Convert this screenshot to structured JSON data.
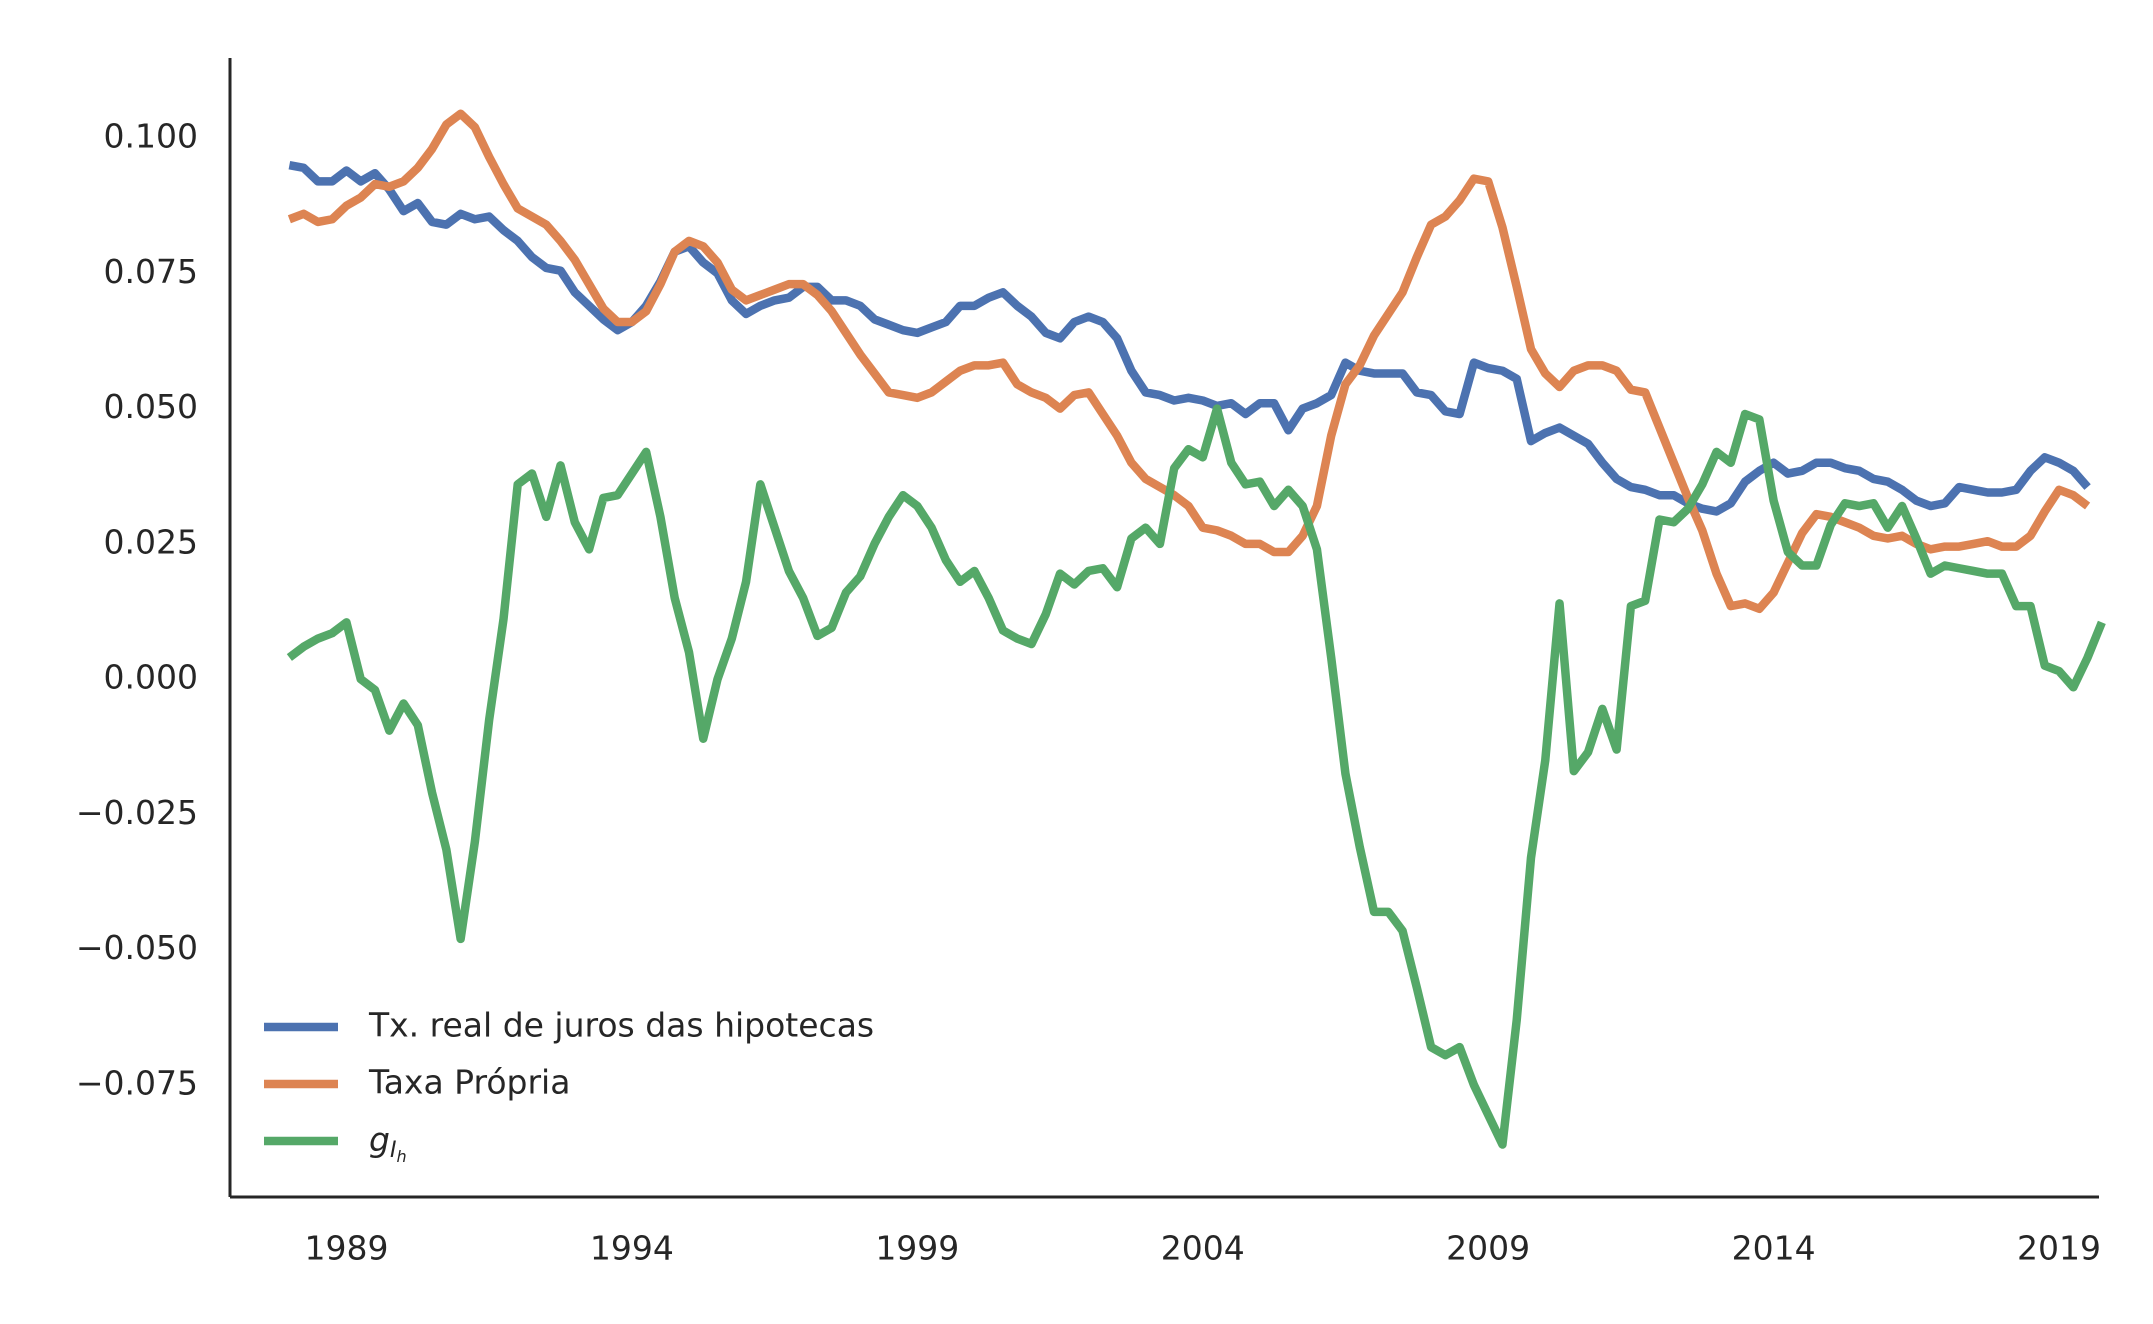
{
  "chart_data": {
    "type": "line",
    "x": [
      1988.0,
      1988.25,
      1988.5,
      1988.75,
      1989.0,
      1989.25,
      1989.5,
      1989.75,
      1990.0,
      1990.25,
      1990.5,
      1990.75,
      1991.0,
      1991.25,
      1991.5,
      1991.75,
      1992.0,
      1992.25,
      1992.5,
      1992.75,
      1993.0,
      1993.25,
      1993.5,
      1993.75,
      1994.0,
      1994.25,
      1994.5,
      1994.75,
      1995.0,
      1995.25,
      1995.5,
      1995.75,
      1996.0,
      1996.25,
      1996.5,
      1996.75,
      1997.0,
      1997.25,
      1997.5,
      1997.75,
      1998.0,
      1998.25,
      1998.5,
      1998.75,
      1999.0,
      1999.25,
      1999.5,
      1999.75,
      2000.0,
      2000.25,
      2000.5,
      2000.75,
      2001.0,
      2001.25,
      2001.5,
      2001.75,
      2002.0,
      2002.25,
      2002.5,
      2002.75,
      2003.0,
      2003.25,
      2003.5,
      2003.75,
      2004.0,
      2004.25,
      2004.5,
      2004.75,
      2005.0,
      2005.25,
      2005.5,
      2005.75,
      2006.0,
      2006.25,
      2006.5,
      2006.75,
      2007.0,
      2007.25,
      2007.5,
      2007.75,
      2008.0,
      2008.25,
      2008.5,
      2008.75,
      2009.0,
      2009.25,
      2009.5,
      2009.75,
      2010.0,
      2010.25,
      2010.5,
      2010.75,
      2011.0,
      2011.25,
      2011.5,
      2011.75,
      2012.0,
      2012.25,
      2012.5,
      2012.75,
      2013.0,
      2013.25,
      2013.5,
      2013.75,
      2014.0,
      2014.25,
      2014.5,
      2014.75,
      2015.0,
      2015.25,
      2015.5,
      2015.75,
      2016.0,
      2016.25,
      2016.5,
      2016.75,
      2017.0,
      2017.25,
      2017.5,
      2017.75,
      2018.0,
      2018.25,
      2018.5,
      2018.75,
      2019.0,
      2019.25,
      2019.5,
      2019.75
    ],
    "series": [
      {
        "name": "Tx. real de juros das hipotecas",
        "color": "#4c72b0",
        "values": [
          0.095,
          0.0945,
          0.092,
          0.092,
          0.094,
          0.092,
          0.0935,
          0.0905,
          0.0865,
          0.088,
          0.0845,
          0.084,
          0.086,
          0.085,
          0.0855,
          0.083,
          0.081,
          0.078,
          0.076,
          0.0755,
          0.0715,
          0.069,
          0.0665,
          0.0645,
          0.066,
          0.069,
          0.0735,
          0.079,
          0.08,
          0.077,
          0.075,
          0.07,
          0.0675,
          0.069,
          0.07,
          0.0705,
          0.0725,
          0.0725,
          0.07,
          0.07,
          0.069,
          0.0665,
          0.0655,
          0.0645,
          0.064,
          0.065,
          0.066,
          0.069,
          0.069,
          0.0705,
          0.0715,
          0.069,
          0.067,
          0.064,
          0.063,
          0.066,
          0.067,
          0.066,
          0.063,
          0.057,
          0.053,
          0.0525,
          0.0515,
          0.052,
          0.0515,
          0.0505,
          0.051,
          0.049,
          0.051,
          0.051,
          0.046,
          0.05,
          0.051,
          0.0525,
          0.0585,
          0.057,
          0.0565,
          0.0565,
          0.0565,
          0.053,
          0.0525,
          0.0495,
          0.049,
          0.0585,
          0.0575,
          0.057,
          0.0555,
          0.044,
          0.0455,
          0.0465,
          0.045,
          0.0435,
          0.04,
          0.037,
          0.0355,
          0.035,
          0.034,
          0.034,
          0.0325,
          0.0315,
          0.031,
          0.0325,
          0.0365,
          0.0385,
          0.04,
          0.038,
          0.0385,
          0.04,
          0.04,
          0.039,
          0.0385,
          0.037,
          0.0365,
          0.035,
          0.033,
          0.032,
          0.0325,
          0.0355,
          0.035,
          0.0345,
          0.0345,
          0.035,
          0.0385,
          0.041,
          0.04,
          0.0385,
          0.0355,
          null
        ]
      },
      {
        "name": "Taxa Própria",
        "color": "#dd8452",
        "values": [
          0.085,
          0.086,
          0.0845,
          0.085,
          0.0875,
          0.089,
          0.0915,
          0.091,
          0.092,
          0.0945,
          0.098,
          0.1025,
          0.1045,
          0.102,
          0.0965,
          0.0915,
          0.087,
          0.0855,
          0.084,
          0.081,
          0.0775,
          0.073,
          0.0685,
          0.066,
          0.066,
          0.068,
          0.073,
          0.079,
          0.081,
          0.08,
          0.077,
          0.072,
          0.07,
          0.071,
          0.072,
          0.073,
          0.073,
          0.071,
          0.068,
          0.064,
          0.06,
          0.0565,
          0.053,
          0.0525,
          0.052,
          0.053,
          0.055,
          0.057,
          0.058,
          0.058,
          0.0585,
          0.0545,
          0.053,
          0.052,
          0.05,
          0.0525,
          0.053,
          0.049,
          0.045,
          0.04,
          0.037,
          0.0355,
          0.034,
          0.032,
          0.028,
          0.0275,
          0.0265,
          0.025,
          0.025,
          0.0235,
          0.0235,
          0.0265,
          0.032,
          0.045,
          0.0545,
          0.058,
          0.0635,
          0.0675,
          0.0715,
          0.078,
          0.084,
          0.0855,
          0.0885,
          0.0925,
          0.092,
          0.0835,
          0.0725,
          0.061,
          0.0565,
          0.054,
          0.057,
          0.058,
          0.058,
          0.057,
          0.0535,
          0.053,
          0.0465,
          0.04,
          0.0335,
          0.0275,
          0.0195,
          0.0135,
          0.014,
          0.013,
          0.016,
          0.0215,
          0.027,
          0.0305,
          0.03,
          0.029,
          0.028,
          0.0265,
          0.026,
          0.0265,
          0.025,
          0.024,
          0.0245,
          0.0245,
          0.025,
          0.0255,
          0.0245,
          0.0245,
          0.0265,
          0.031,
          0.035,
          0.034,
          0.032,
          null
        ]
      },
      {
        "name": "gIh",
        "color": "#55a868",
        "values": [
          0.004,
          0.006,
          0.0075,
          0.0085,
          0.0105,
          0.0,
          -0.002,
          -0.0095,
          -0.0045,
          -0.0085,
          -0.021,
          -0.0315,
          -0.048,
          -0.03,
          -0.0075,
          0.011,
          0.036,
          0.038,
          0.03,
          0.0395,
          0.029,
          0.024,
          0.0335,
          0.034,
          0.038,
          0.042,
          0.03,
          0.015,
          0.005,
          -0.011,
          0.0,
          0.0075,
          0.018,
          0.036,
          0.028,
          0.02,
          0.015,
          0.008,
          0.0095,
          0.016,
          0.019,
          0.025,
          0.03,
          0.034,
          0.032,
          0.028,
          0.022,
          0.018,
          0.02,
          0.015,
          0.009,
          0.0075,
          0.0065,
          0.012,
          0.0195,
          0.0175,
          0.02,
          0.0205,
          0.017,
          0.026,
          0.028,
          0.025,
          0.039,
          0.0425,
          0.041,
          0.05,
          0.04,
          0.036,
          0.0365,
          0.032,
          0.035,
          0.032,
          0.024,
          0.004,
          -0.0175,
          -0.031,
          -0.043,
          -0.043,
          -0.0465,
          -0.057,
          -0.068,
          -0.0695,
          -0.068,
          -0.075,
          -0.0805,
          -0.086,
          -0.063,
          -0.033,
          -0.015,
          0.014,
          -0.017,
          -0.0135,
          -0.0055,
          -0.013,
          0.0135,
          0.0145,
          0.0295,
          0.029,
          0.0315,
          0.036,
          0.042,
          0.04,
          0.049,
          0.048,
          0.033,
          0.0235,
          0.021,
          0.021,
          0.0285,
          0.0325,
          0.032,
          0.0325,
          0.028,
          0.032,
          0.026,
          0.0195,
          0.021,
          0.0205,
          0.02,
          0.0195,
          0.0195,
          0.0135,
          0.0135,
          0.0025,
          0.0015,
          -0.0015,
          0.004,
          0.0105
        ]
      }
    ],
    "xlim": [
      1986.96,
      2019.7
    ],
    "xticks": [
      1989,
      1994,
      1999,
      2004,
      2009,
      2014,
      2019
    ],
    "ylim": [
      -0.0957,
      0.1148
    ],
    "yticks": [
      {
        "value": -0.075,
        "label": "−0.075"
      },
      {
        "value": -0.05,
        "label": "−0.050"
      },
      {
        "value": -0.025,
        "label": "−0.025"
      },
      {
        "value": 0,
        "label": "0.000"
      },
      {
        "value": 0.025,
        "label": "0.025"
      },
      {
        "value": 0.05,
        "label": "0.050"
      },
      {
        "value": 0.075,
        "label": "0.075"
      },
      {
        "value": 0.1,
        "label": "0.100"
      }
    ],
    "grid": false,
    "legend": "lower left"
  }
}
